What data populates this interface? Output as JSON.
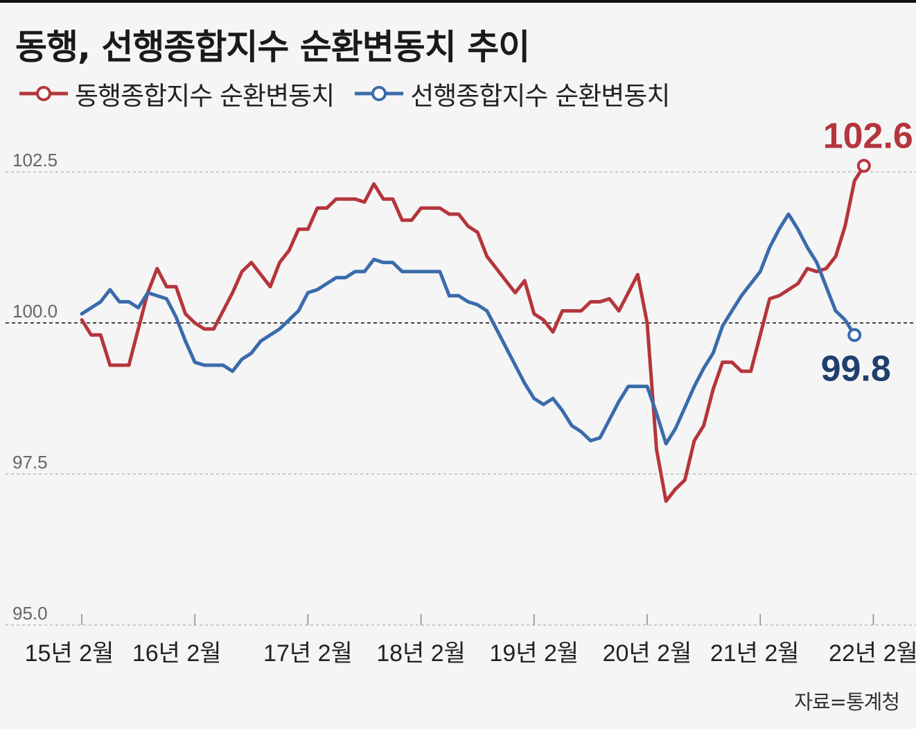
{
  "chart_data": {
    "type": "line",
    "title": "동행, 선행종합지수 순환변동치 추이",
    "source": "자료=통계청",
    "ylim": [
      95.0,
      102.5
    ],
    "ytick_labels": [
      "95.0",
      "97.5",
      "100.0",
      "102.5"
    ],
    "yticks": [
      95.0,
      97.5,
      100.0,
      102.5
    ],
    "reference_line": 100.0,
    "x_tick_labels": [
      "15년 2월",
      "16년 2월",
      "17년 2월",
      "18년 2월",
      "19년 2월",
      "20년 2월",
      "21년 2월",
      "22년 2월"
    ],
    "x_tick_indices": [
      0,
      12,
      24,
      36,
      48,
      60,
      72,
      84
    ],
    "series": [
      {
        "name": "동행종합지수 순환변동치",
        "color": "#b5353c",
        "end_label": "102.6",
        "values": [
          100.05,
          99.8,
          99.8,
          99.3,
          99.3,
          99.3,
          99.9,
          100.5,
          100.9,
          100.6,
          100.6,
          100.15,
          100.0,
          99.9,
          99.9,
          100.2,
          100.5,
          100.85,
          101.0,
          100.8,
          100.6,
          101.0,
          101.2,
          101.55,
          101.55,
          101.9,
          101.9,
          102.05,
          102.05,
          102.05,
          102.0,
          102.3,
          102.05,
          102.05,
          101.7,
          101.7,
          101.9,
          101.9,
          101.9,
          101.8,
          101.8,
          101.6,
          101.5,
          101.1,
          100.9,
          100.7,
          100.5,
          100.7,
          100.15,
          100.05,
          99.85,
          100.2,
          100.2,
          100.2,
          100.35,
          100.35,
          100.4,
          100.2,
          100.5,
          100.8,
          100.0,
          97.9,
          97.05,
          97.25,
          97.4,
          98.05,
          98.3,
          98.9,
          99.35,
          99.35,
          99.2,
          99.2,
          99.8,
          100.4,
          100.45,
          100.55,
          100.65,
          100.9,
          100.85,
          100.9,
          101.1,
          101.6,
          102.35,
          102.6
        ]
      },
      {
        "name": "선행종합지수 순환변동치",
        "color": "#3a6bab",
        "end_label": "99.8",
        "values": [
          100.15,
          100.25,
          100.35,
          100.55,
          100.35,
          100.35,
          100.25,
          100.5,
          100.45,
          100.4,
          100.1,
          99.7,
          99.35,
          99.3,
          99.3,
          99.3,
          99.2,
          99.4,
          99.5,
          99.7,
          99.8,
          99.9,
          100.05,
          100.2,
          100.5,
          100.55,
          100.65,
          100.75,
          100.75,
          100.85,
          100.85,
          101.05,
          101.0,
          101.0,
          100.85,
          100.85,
          100.85,
          100.85,
          100.85,
          100.45,
          100.45,
          100.35,
          100.3,
          100.2,
          99.9,
          99.6,
          99.3,
          99.0,
          98.75,
          98.65,
          98.75,
          98.55,
          98.3,
          98.2,
          98.05,
          98.1,
          98.4,
          98.7,
          98.95,
          98.95,
          98.95,
          98.5,
          98.0,
          98.25,
          98.6,
          98.95,
          99.25,
          99.5,
          99.95,
          100.2,
          100.45,
          100.65,
          100.85,
          101.25,
          101.55,
          101.8,
          101.55,
          101.25,
          101.0,
          100.6,
          100.2,
          100.05,
          99.8
        ]
      }
    ]
  }
}
